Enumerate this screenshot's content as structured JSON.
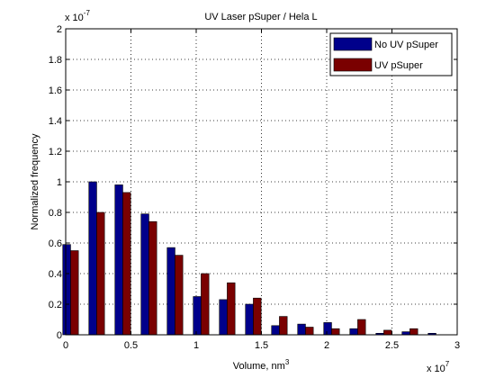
{
  "chart_data": {
    "type": "bar",
    "title": "UV Laser pSuper / Hela L",
    "xlabel_base": "Volume, nm",
    "xlabel_sup": "3",
    "ylabel": "Normalized frequency",
    "x_multiplier": "x 10",
    "x_multiplier_exp": "7",
    "y_multiplier": "x 10",
    "y_multiplier_exp": "-7",
    "xlim": [
      0,
      3
    ],
    "ylim": [
      0,
      2
    ],
    "xticks": [
      0,
      0.5,
      1,
      1.5,
      2,
      2.5,
      3
    ],
    "xtick_labels": [
      "0",
      "0.5",
      "1",
      "1.5",
      "2",
      "2.5",
      "3"
    ],
    "yticks": [
      0,
      0.2,
      0.4,
      0.6,
      0.8,
      1,
      1.2,
      1.4,
      1.6,
      1.8,
      2
    ],
    "ytick_labels": [
      "0",
      "0.2",
      "0.4",
      "0.6",
      "0.8",
      "1",
      "1.2",
      "1.4",
      "1.6",
      "1.8",
      "2"
    ],
    "grid": true,
    "legend_position": "top-right",
    "x": [
      0.0375,
      0.2375,
      0.4375,
      0.6375,
      0.8375,
      1.0375,
      1.2375,
      1.4375,
      1.6375,
      1.8375,
      2.0375,
      2.2375,
      2.4375,
      2.6375,
      2.8375
    ],
    "series": [
      {
        "name": "No UV pSuper",
        "color": "#00008b",
        "values": [
          0.59,
          1.0,
          0.98,
          0.79,
          0.57,
          0.25,
          0.23,
          0.2,
          0.06,
          0.07,
          0.08,
          0.04,
          0.01,
          0.02,
          0.01
        ]
      },
      {
        "name": "UV pSuper",
        "color": "#7a0000",
        "values": [
          0.55,
          0.8,
          0.93,
          0.74,
          0.52,
          0.4,
          0.34,
          0.24,
          0.12,
          0.05,
          0.04,
          0.1,
          0.03,
          0.04,
          0.0
        ]
      }
    ]
  }
}
